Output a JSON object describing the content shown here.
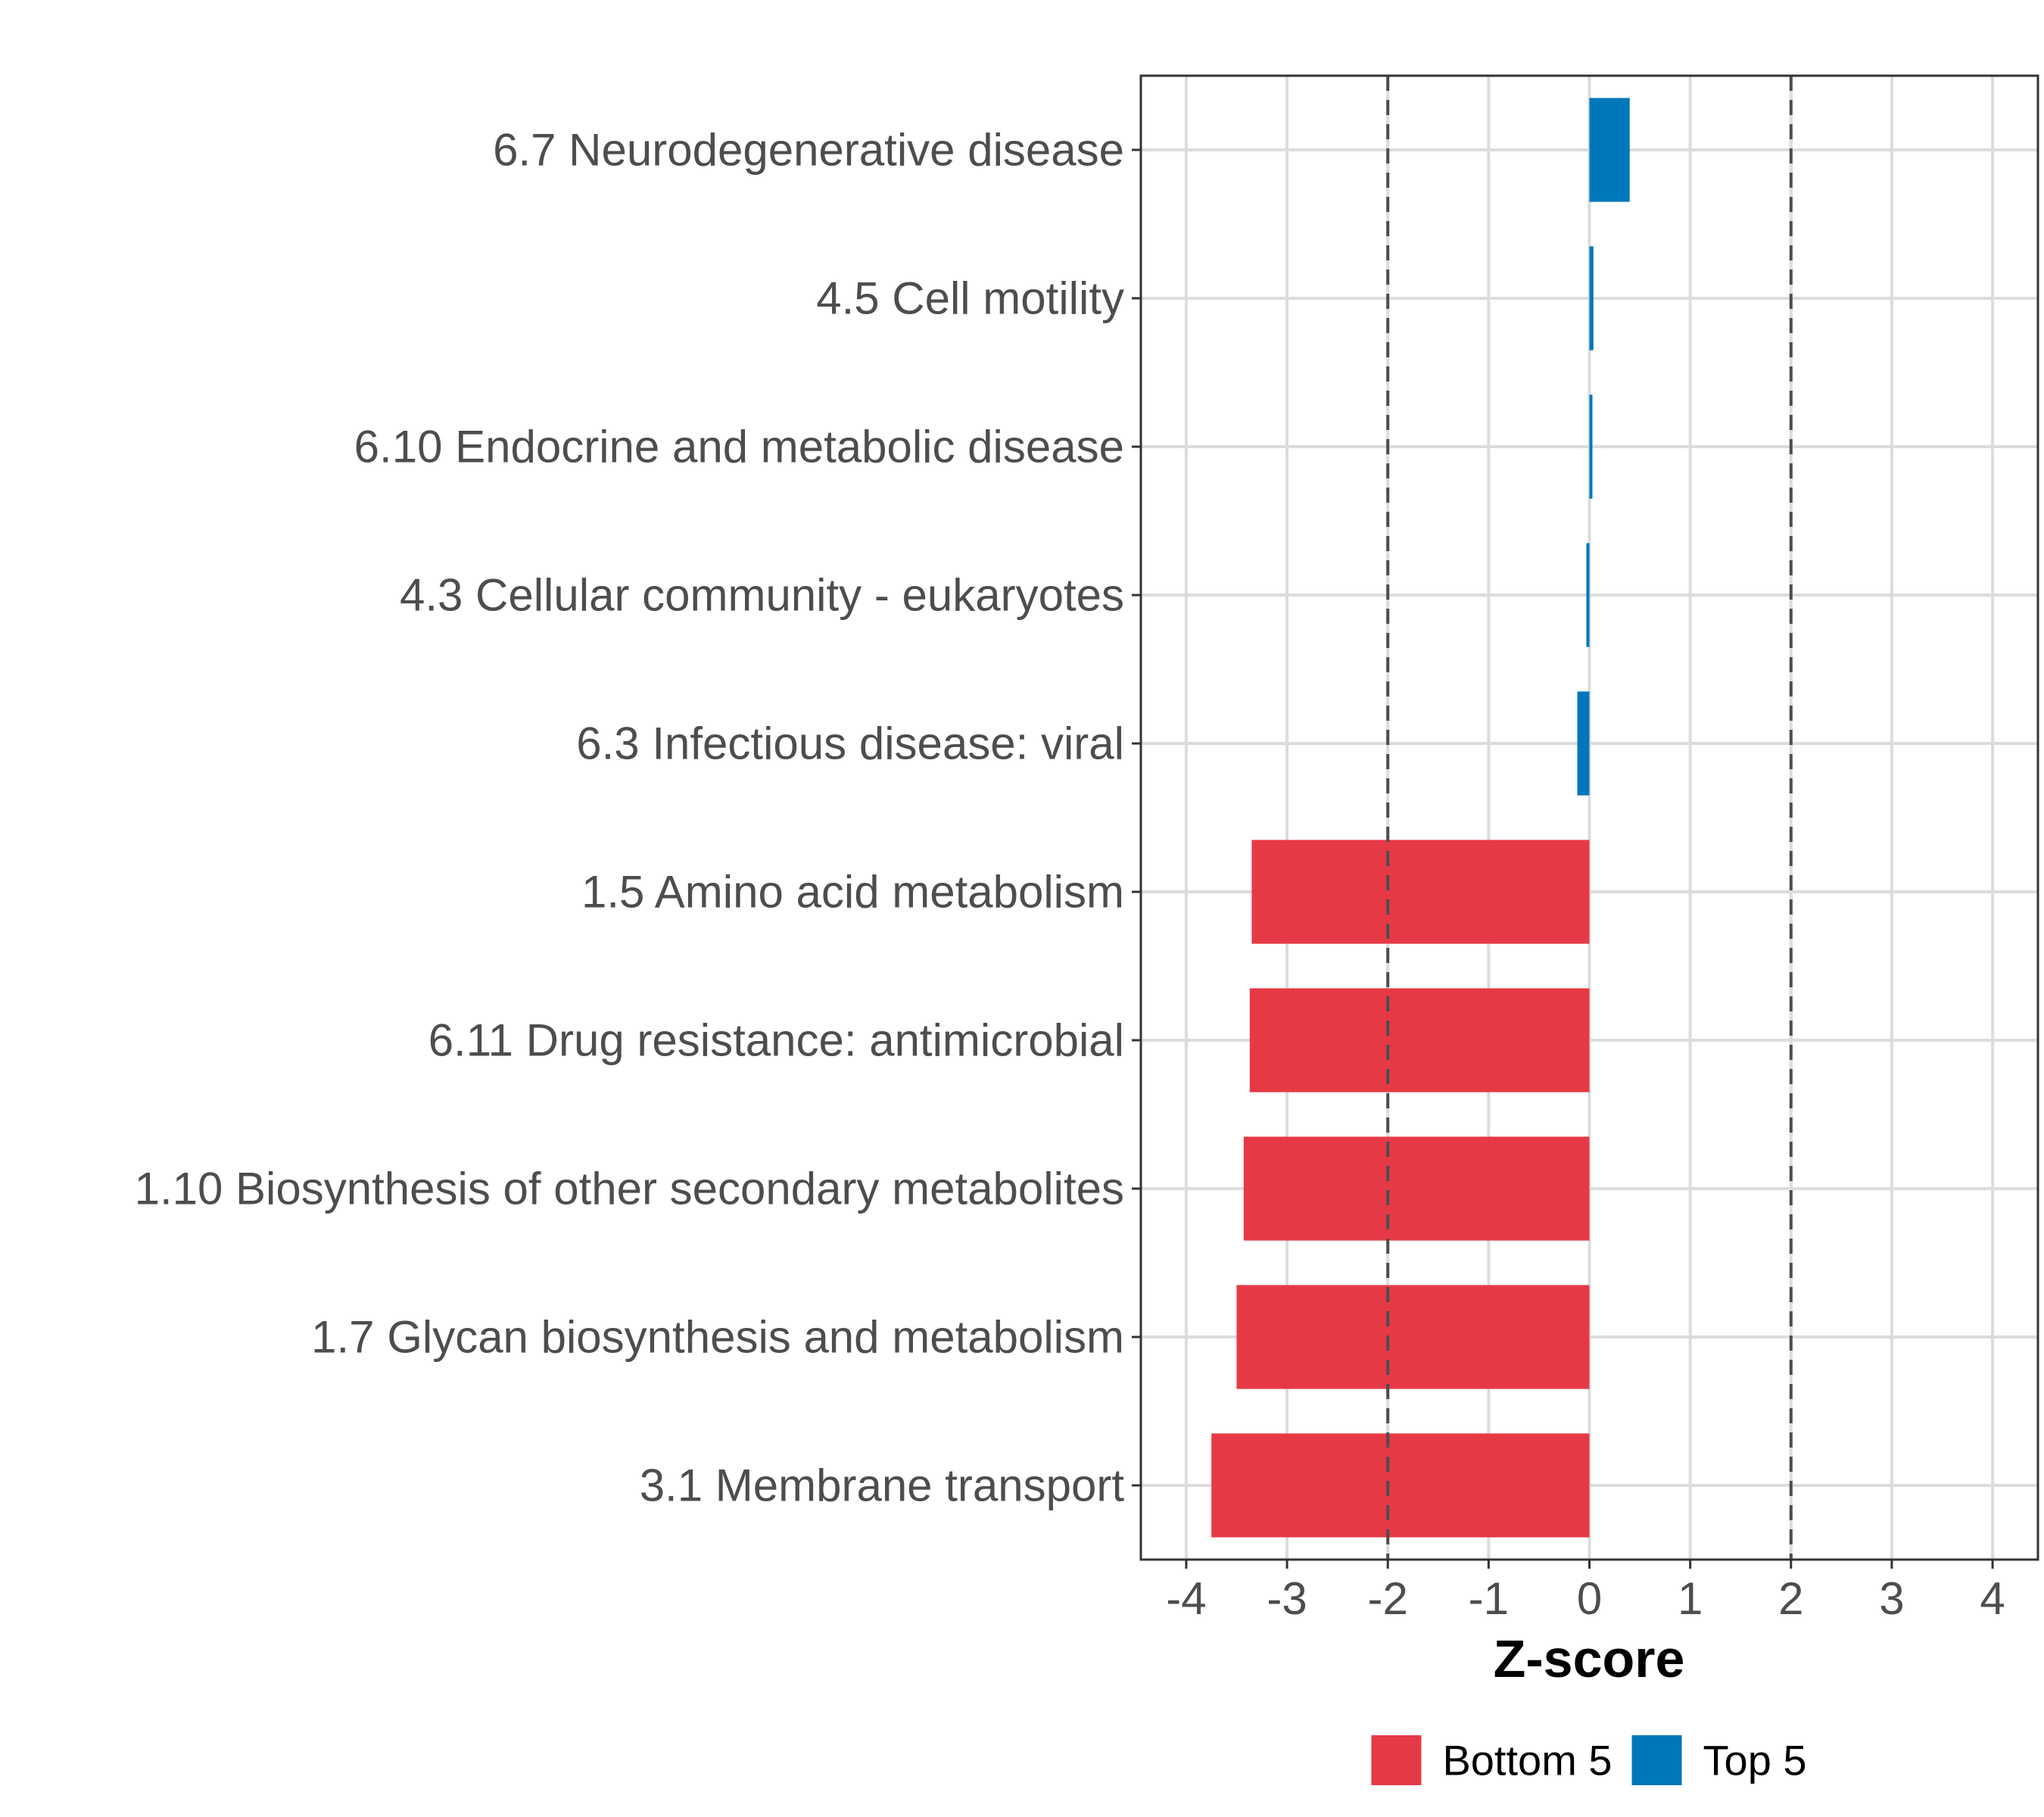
{
  "chart_data": {
    "type": "bar",
    "orientation": "horizontal",
    "title": "",
    "xlabel": "Z-score",
    "ylabel": "",
    "xlim": [
      -4.45,
      4.45
    ],
    "x_ticks": [
      -4,
      -3,
      -2,
      -1,
      0,
      1,
      2,
      3,
      4
    ],
    "x_tick_labels": [
      "-4",
      "-3",
      "-2",
      "-1",
      "0",
      "1",
      "2",
      "3",
      "4"
    ],
    "reference_lines": [
      -2,
      2
    ],
    "grid": true,
    "legend_position": "bottom",
    "categories": [
      "6.7 Neurodegenerative disease",
      "4.5 Cell motility",
      "6.10 Endocrine and metabolic disease",
      "4.3 Cellular community - eukaryotes",
      "6.3 Infectious disease: viral",
      "1.5 Amino acid metabolism",
      "6.11 Drug resistance: antimicrobial",
      "1.10 Biosynthesis of other secondary metabolites",
      "1.7 Glycan biosynthesis and metabolism",
      "3.1 Membrane transport"
    ],
    "values": [
      0.4,
      0.04,
      0.03,
      -0.03,
      -0.12,
      -3.35,
      -3.37,
      -3.43,
      -3.5,
      -3.75
    ],
    "groups": [
      "Top 5",
      "Top 5",
      "Top 5",
      "Top 5",
      "Top 5",
      "Bottom 5",
      "Bottom 5",
      "Bottom 5",
      "Bottom 5",
      "Bottom 5"
    ],
    "legend": [
      {
        "name": "Bottom 5",
        "color": "#E63946"
      },
      {
        "name": "Top 5",
        "color": "#0077BB"
      }
    ]
  }
}
